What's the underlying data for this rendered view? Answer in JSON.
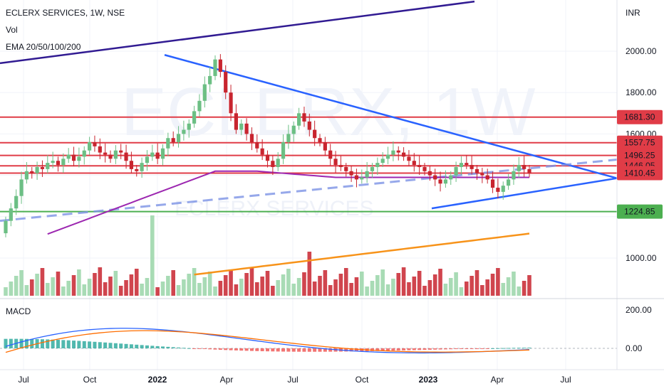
{
  "legend": {
    "symbol": "ECLERX SERVICES, 1W, NSE",
    "volume": "Vol",
    "ema": "EMA 20/50/100/200",
    "macd": "MACD"
  },
  "watermark": {
    "big": "ECLERX, 1W",
    "small": "ECLERX SERVICES"
  },
  "currency": "INR",
  "colors": {
    "up": "#6cbf84",
    "down": "#c8252f",
    "hline": "#e03c47",
    "support": "#4caf50",
    "trend": "#2962ff",
    "trendDark": "#311b92",
    "ema50": "#9c27b0",
    "ema200": "#f7931a",
    "macdLine": "#2962ff",
    "signalLine": "#ff6d00"
  },
  "chart_data": {
    "type": "candlestick",
    "x_tick_labels": [
      "Jul",
      "Oct",
      "2022",
      "Apr",
      "Jul",
      "Oct",
      "2023",
      "Apr",
      "Jul"
    ],
    "y_tick_labels": [
      "2000.00",
      "1800.00",
      "1600.00",
      "1000.00"
    ],
    "ylim": [
      875,
      2150
    ],
    "price_levels": [
      {
        "value": 1681.3,
        "label": "1681.30"
      },
      {
        "value": 1557.75,
        "label": "1557.75"
      },
      {
        "value": 1496.25,
        "label": "1496.25"
      },
      {
        "value": 1446.05,
        "label": "1446.05"
      },
      {
        "value": 1410.45,
        "label": "1410.45"
      },
      {
        "value": 1224.85,
        "label": "1224.85"
      }
    ],
    "last_price": 1410.45,
    "macd_tick_labels": [
      "200.00",
      "0.00"
    ],
    "macd_ylim": [
      -45,
      230
    ]
  }
}
